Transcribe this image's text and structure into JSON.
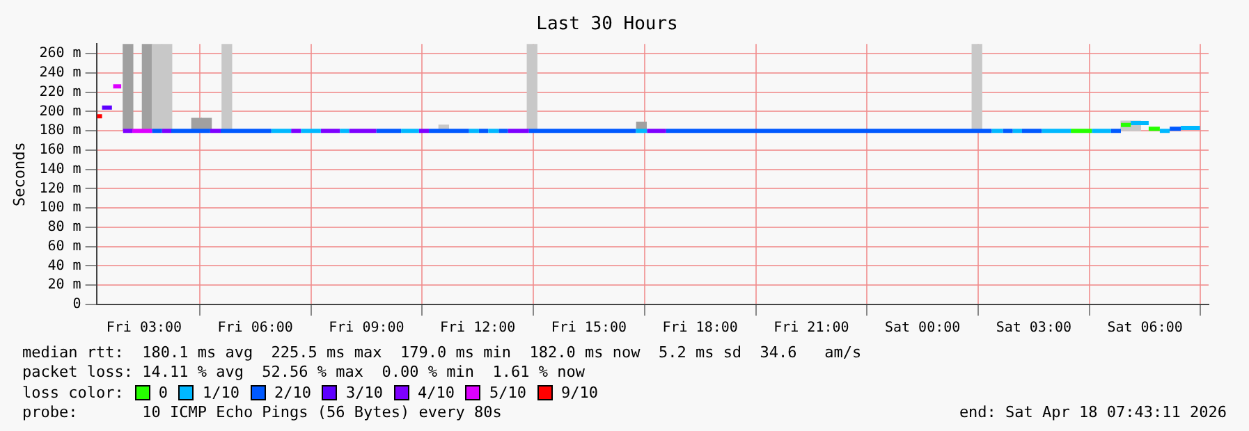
{
  "chart_data": {
    "type": "line",
    "title": "Last 30 Hours",
    "ylabel": "Seconds",
    "legend_title": "loss color:",
    "xlim": [
      "2026-04-17T01:43",
      "2026-04-18T07:43"
    ],
    "xticks": [
      {
        "value": "2026-04-17T03:00",
        "label": "Fri 03:00"
      },
      {
        "value": "2026-04-17T06:00",
        "label": "Fri 06:00"
      },
      {
        "value": "2026-04-17T09:00",
        "label": "Fri 09:00"
      },
      {
        "value": "2026-04-17T12:00",
        "label": "Fri 12:00"
      },
      {
        "value": "2026-04-17T15:00",
        "label": "Fri 15:00"
      },
      {
        "value": "2026-04-17T18:00",
        "label": "Fri 18:00"
      },
      {
        "value": "2026-04-17T21:00",
        "label": "Fri 21:00"
      },
      {
        "value": "2026-04-18T00:00",
        "label": "Sat 00:00"
      },
      {
        "value": "2026-04-18T03:00",
        "label": "Sat 03:00"
      },
      {
        "value": "2026-04-18T06:00",
        "label": "Sat 06:00"
      }
    ],
    "ylim": [
      0,
      270
    ],
    "yticks": [
      0,
      {
        "value": 20,
        "label": "20 m"
      },
      {
        "value": 40,
        "label": "40 m"
      },
      {
        "value": 60,
        "label": "60 m"
      },
      {
        "value": 80,
        "label": "80 m"
      },
      {
        "value": 100,
        "label": "100 m"
      },
      {
        "value": 120,
        "label": "120 m"
      },
      {
        "value": 140,
        "label": "140 m"
      },
      {
        "value": 160,
        "label": "160 m"
      },
      {
        "value": 180,
        "label": "180 m"
      },
      {
        "value": 200,
        "label": "200 m"
      },
      {
        "value": 220,
        "label": "220 m"
      },
      {
        "value": 240,
        "label": "240 m"
      },
      {
        "value": 260,
        "label": "260 m"
      }
    ],
    "grid": true,
    "legend": "bottom",
    "marker": "none",
    "line_style": "solid",
    "series": [
      {
        "type": "bar",
        "x": [
          "2026-04-17T02:34",
          "2026-04-17T03:05",
          "2026-04-17T03:21",
          "2026-04-17T03:37",
          "2026-04-17T04:25",
          "2026-04-17T04:41",
          "2026-04-17T05:14",
          "2026-04-17T11:05",
          "2026-04-17T13:28",
          "2026-04-17T16:25",
          "2026-04-18T01:28",
          "2026-04-18T05:29",
          "2026-04-18T05:45"
        ],
        "base": [
          180,
          180,
          180,
          180,
          180,
          180,
          180,
          180,
          180,
          180,
          180,
          180,
          180
        ],
        "values": [
          90,
          90,
          90,
          90,
          13,
          13,
          90,
          6,
          90,
          9,
          90,
          10,
          10
        ],
        "colors": [
          "#a0a0a0",
          "#a0a0a0",
          "#c8c8c8",
          "#c8c8c8",
          "#a0a0a0",
          "#a0a0a0",
          "#c8c8c8",
          "#c8c8c8",
          "#c8c8c8",
          "#a0a0a0",
          "#c8c8c8",
          "#c8c8c8",
          "#c8c8c8"
        ]
      },
      {
        "name": "0",
        "color": "#26ff00",
        "x": [
          "2026-04-18T04:00",
          "2026-04-18T04:34",
          null,
          "2026-04-18T05:21",
          "2026-04-18T05:37",
          null,
          "2026-04-18T06:06",
          "2026-04-18T06:24"
        ],
        "values": [
          180,
          180,
          null,
          186,
          186,
          null,
          182,
          182
        ]
      },
      {
        "name": "1/10",
        "color": "#00b8ff",
        "x": [
          "2026-04-17T06:26",
          "2026-04-17T06:58",
          null,
          "2026-04-17T07:14",
          "2026-04-17T07:46",
          null,
          "2026-04-17T08:17",
          "2026-04-17T08:32",
          null,
          "2026-04-17T09:56",
          "2026-04-17T10:25",
          null,
          "2026-04-17T11:46",
          "2026-04-17T12:02",
          null,
          "2026-04-17T12:17",
          "2026-04-17T12:34",
          null,
          "2026-04-17T16:16",
          "2026-04-17T16:34",
          null,
          "2026-04-18T01:52",
          "2026-04-18T02:10",
          null,
          "2026-04-18T02:26",
          "2026-04-18T02:41",
          null,
          "2026-04-18T03:13",
          "2026-04-18T04:00",
          null,
          "2026-04-18T04:34",
          "2026-04-18T05:05",
          null,
          "2026-04-18T05:37",
          "2026-04-18T06:06",
          null,
          "2026-04-18T06:24",
          "2026-04-18T06:40",
          null,
          "2026-04-18T06:58",
          "2026-04-18T07:29"
        ],
        "values": [
          180,
          180,
          null,
          180,
          180,
          null,
          180,
          180,
          null,
          180,
          180,
          null,
          180,
          180,
          null,
          180,
          180,
          null,
          180,
          180,
          null,
          180,
          180,
          null,
          180,
          180,
          null,
          180,
          180,
          null,
          180,
          180,
          null,
          188,
          188,
          null,
          180,
          180,
          null,
          183,
          183
        ]
      },
      {
        "name": "2/10",
        "color": "#0059ff",
        "x": [
          "2026-04-17T03:13",
          "2026-04-17T03:29",
          null,
          "2026-04-17T03:44",
          "2026-04-17T04:47",
          null,
          "2026-04-17T05:04",
          "2026-04-17T06:26",
          null,
          "2026-04-17T09:16",
          "2026-04-17T09:56",
          null,
          "2026-04-17T10:41",
          "2026-04-17T11:46",
          null,
          "2026-04-17T12:02",
          "2026-04-17T12:17",
          null,
          "2026-04-17T12:34",
          "2026-04-17T12:49",
          null,
          "2026-04-17T13:23",
          "2026-04-17T16:16",
          null,
          "2026-04-17T17:05",
          "2026-04-18T01:52",
          null,
          "2026-04-18T02:10",
          "2026-04-18T02:26",
          null,
          "2026-04-18T02:41",
          "2026-04-18T03:13",
          null,
          "2026-04-18T05:05",
          "2026-04-18T05:21",
          null,
          "2026-04-18T06:40",
          "2026-04-18T06:58"
        ],
        "values": [
          180,
          180,
          null,
          180,
          180,
          null,
          180,
          180,
          null,
          180,
          180,
          null,
          180,
          180,
          null,
          180,
          180,
          null,
          180,
          180,
          null,
          180,
          180,
          null,
          180,
          180,
          null,
          180,
          180,
          null,
          180,
          180,
          null,
          180,
          180,
          null,
          182,
          182
        ]
      },
      {
        "name": "3/10",
        "color": "#5e00ff",
        "x": [
          "2026-04-17T01:52",
          "2026-04-17T02:08"
        ],
        "values": [
          204,
          204
        ]
      },
      {
        "name": "4/10",
        "color": "#7e00ff",
        "x": [
          "2026-04-17T02:26",
          "2026-04-17T02:41",
          null,
          "2026-04-17T03:29",
          "2026-04-17T03:44",
          null,
          "2026-04-17T04:47",
          "2026-04-17T05:04",
          null,
          "2026-04-17T06:58",
          "2026-04-17T07:14",
          null,
          "2026-04-17T07:46",
          "2026-04-17T08:17",
          null,
          "2026-04-17T08:32",
          "2026-04-17T09:16",
          null,
          "2026-04-17T10:25",
          "2026-04-17T10:41",
          null,
          "2026-04-17T12:49",
          "2026-04-17T13:23",
          null,
          "2026-04-17T16:34",
          "2026-04-17T17:05"
        ],
        "values": [
          180,
          180,
          null,
          180,
          180,
          null,
          180,
          180,
          null,
          180,
          180,
          null,
          180,
          180,
          null,
          180,
          180,
          null,
          180,
          180,
          null,
          180,
          180,
          null,
          180,
          180
        ]
      },
      {
        "name": "5/10",
        "color": "#dd00ff",
        "x": [
          "2026-04-17T02:10",
          "2026-04-17T02:23",
          null,
          "2026-04-17T02:41",
          "2026-04-17T03:13"
        ],
        "values": [
          226,
          226,
          null,
          180,
          180
        ]
      },
      {
        "name": "9/10",
        "color": "#ff0000",
        "x": [
          "2026-04-17T01:44",
          "2026-04-17T01:52"
        ],
        "values": [
          195,
          195
        ]
      }
    ],
    "annotations": [
      "median rtt:  180.1 ms avg  225.5 ms max  179.0 ms min  182.0 ms now  5.2 ms sd  34.6   am/s",
      "packet loss: 14.11 % avg  52.56 % max  0.00 % min  1.61 % now",
      "probe:       10 ICMP Echo Pings (56 Bytes) every 80s",
      "end: Sat Apr 18 07:43:11 2026"
    ]
  }
}
